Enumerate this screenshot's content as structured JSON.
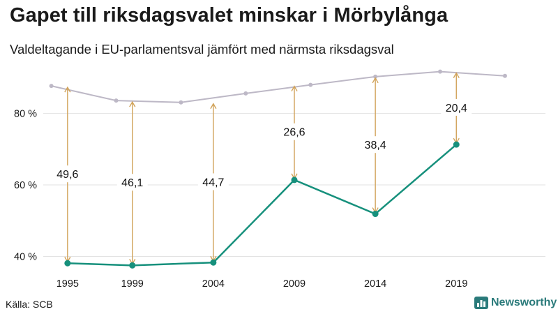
{
  "title": "Gapet till riksdagsvalet minskar i Mörbylånga",
  "subtitle": "Valdeltagande i EU-parlamentsval jämfört med närmsta riksdagsval",
  "source": "Källa: SCB",
  "brand": "Newsworthy",
  "colors": {
    "eu_line": "#16907c",
    "riksdag_line": "#bdb8c6",
    "gap_arrow": "#d1a35a",
    "grid": "#e2e2e2",
    "brand": "#2a7a7a"
  },
  "chart_data": {
    "type": "line",
    "ylim": [
      36,
      93
    ],
    "xlim": [
      1993.5,
      2024.5
    ],
    "yticks": [
      40,
      60,
      80
    ],
    "ytick_labels": [
      "40 %",
      "60 %",
      "80 %"
    ],
    "xticks": [
      1995,
      1999,
      2004,
      2009,
      2014,
      2019
    ],
    "xtick_labels": [
      "1995",
      "1999",
      "2004",
      "2009",
      "2014",
      "2019"
    ],
    "grid": true,
    "series": [
      {
        "key": "eu",
        "x": [
          1995,
          1999,
          2004,
          2009,
          2014,
          2019
        ],
        "values": [
          38.1,
          37.5,
          38.3,
          61.4,
          51.9,
          71.3
        ]
      },
      {
        "key": "riksdag",
        "x": [
          1994,
          1998,
          2002,
          2006,
          2010,
          2014,
          2018,
          2022
        ],
        "values": [
          87.7,
          83.6,
          83.1,
          85.6,
          88.0,
          90.3,
          91.7,
          90.5
        ]
      }
    ],
    "gaps": [
      {
        "x": 1995,
        "from": 38.1,
        "to": 87.7,
        "label": "49,6"
      },
      {
        "x": 1999,
        "from": 37.5,
        "to": 83.6,
        "label": "46,1"
      },
      {
        "x": 2004,
        "from": 38.3,
        "to": 83.1,
        "label": "44,7"
      },
      {
        "x": 2009,
        "from": 61.4,
        "to": 88.0,
        "label": "26,6"
      },
      {
        "x": 2014,
        "from": 51.9,
        "to": 90.3,
        "label": "38,4"
      },
      {
        "x": 2019,
        "from": 71.3,
        "to": 91.7,
        "label": "20,4"
      }
    ]
  }
}
